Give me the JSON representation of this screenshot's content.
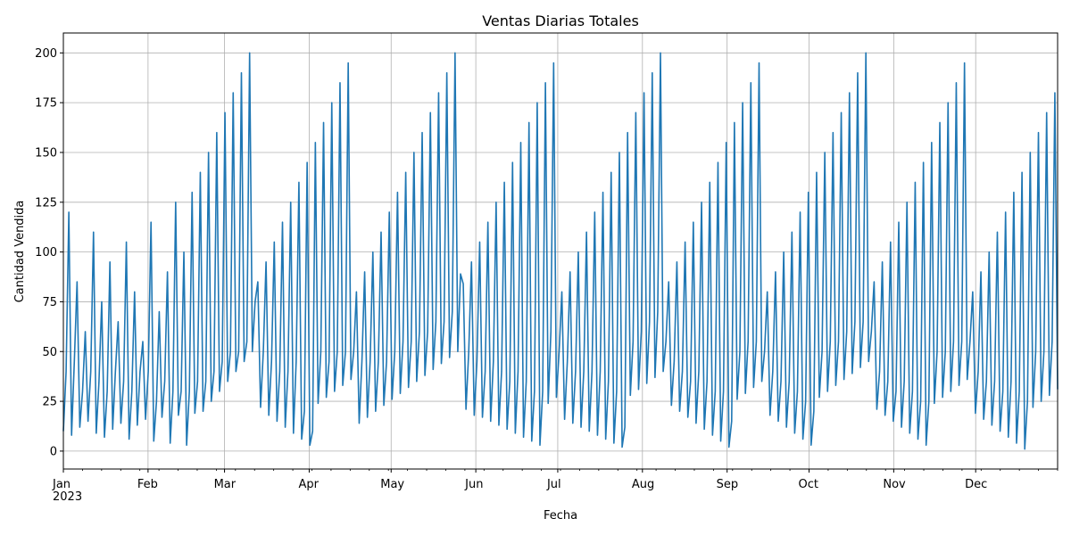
{
  "chart_data": {
    "type": "line",
    "title": "Ventas Diarias Totales",
    "xlabel": "Fecha",
    "ylabel": "Cantidad Vendida",
    "x_start": "2023-01-01",
    "x_end": "2023-12-31",
    "x_ticks": [
      "Jan\n2023",
      "Feb",
      "Mar",
      "Apr",
      "May",
      "Jun",
      "Jul",
      "Aug",
      "Sep",
      "Oct",
      "Nov",
      "Dec"
    ],
    "y_ticks": [
      0,
      25,
      50,
      75,
      100,
      125,
      150,
      175,
      200
    ],
    "ylim": [
      -9,
      210
    ],
    "grid": true,
    "line_color": "#1f77b4",
    "series": [
      {
        "values": [
          10,
          40,
          120,
          8,
          45,
          85,
          12,
          30,
          60,
          15,
          40,
          110,
          9,
          35,
          75,
          7,
          30,
          95,
          11,
          40,
          65,
          14,
          35,
          105,
          6,
          30,
          80,
          13,
          40,
          55,
          16,
          40,
          115,
          5,
          25,
          70,
          17,
          35,
          90,
          4,
          30,
          125,
          18,
          30,
          100,
          3,
          30,
          130,
          19,
          35,
          140,
          20,
          35,
          150,
          25,
          40,
          160,
          30,
          45,
          170,
          35,
          50,
          180,
          40,
          50,
          190,
          45,
          55,
          200,
          50,
          75,
          85,
          22,
          50,
          95,
          18,
          45,
          105,
          15,
          40,
          115,
          12,
          40,
          125,
          9,
          45,
          135,
          6,
          20,
          145,
          3,
          10,
          155,
          24,
          50,
          165,
          27,
          45,
          175,
          30,
          50,
          185,
          33,
          50,
          195,
          36,
          50,
          80,
          14,
          45,
          90,
          17,
          45,
          100,
          20,
          45,
          110,
          23,
          45,
          120,
          26,
          50,
          130,
          29,
          55,
          140,
          32,
          55,
          150,
          35,
          60,
          160,
          38,
          60,
          170,
          41,
          65,
          180,
          44,
          65,
          190,
          47,
          70,
          200,
          50,
          89,
          84,
          21,
          50,
          95,
          18,
          45,
          105,
          17,
          40,
          115,
          15,
          45,
          125,
          13,
          40,
          135,
          11,
          35,
          145,
          9,
          40,
          155,
          7,
          35,
          165,
          5,
          30,
          175,
          3,
          30,
          185,
          24,
          60,
          195,
          27,
          50,
          80,
          16,
          45,
          90,
          14,
          40,
          100,
          12,
          40,
          110,
          10,
          40,
          120,
          8,
          40,
          130,
          6,
          35,
          140,
          4,
          30,
          150,
          2,
          12,
          160,
          28,
          55,
          170,
          31,
          60,
          180,
          34,
          65,
          190,
          37,
          70,
          200,
          40,
          55,
          85,
          23,
          45,
          95,
          20,
          40,
          105,
          17,
          35,
          115,
          14,
          40,
          125,
          11,
          35,
          135,
          8,
          30,
          145,
          5,
          30,
          155,
          2,
          15,
          165,
          26,
          50,
          175,
          29,
          55,
          185,
          32,
          55,
          195,
          35,
          50,
          80,
          18,
          40,
          90,
          15,
          35,
          100,
          12,
          35,
          110,
          9,
          30,
          120,
          6,
          25,
          130,
          3,
          20,
          140,
          27,
          50,
          150,
          30,
          55,
          160,
          33,
          55,
          170,
          36,
          60,
          180,
          39,
          65,
          190,
          42,
          65,
          200,
          45,
          60,
          85,
          21,
          40,
          95,
          18,
          35,
          105,
          15,
          30,
          115,
          12,
          35,
          125,
          9,
          30,
          135,
          6,
          25,
          145,
          3,
          25,
          155,
          24,
          50,
          165,
          27,
          50,
          175,
          30,
          55,
          185,
          33,
          55,
          195,
          36,
          55,
          80,
          19,
          40,
          90,
          16,
          35,
          100,
          13,
          35,
          110,
          10,
          30,
          120,
          7,
          35,
          130,
          4,
          30,
          140,
          1,
          25,
          150,
          22,
          50,
          160,
          25,
          50,
          170,
          28,
          55,
          180,
          31
        ]
      }
    ]
  }
}
